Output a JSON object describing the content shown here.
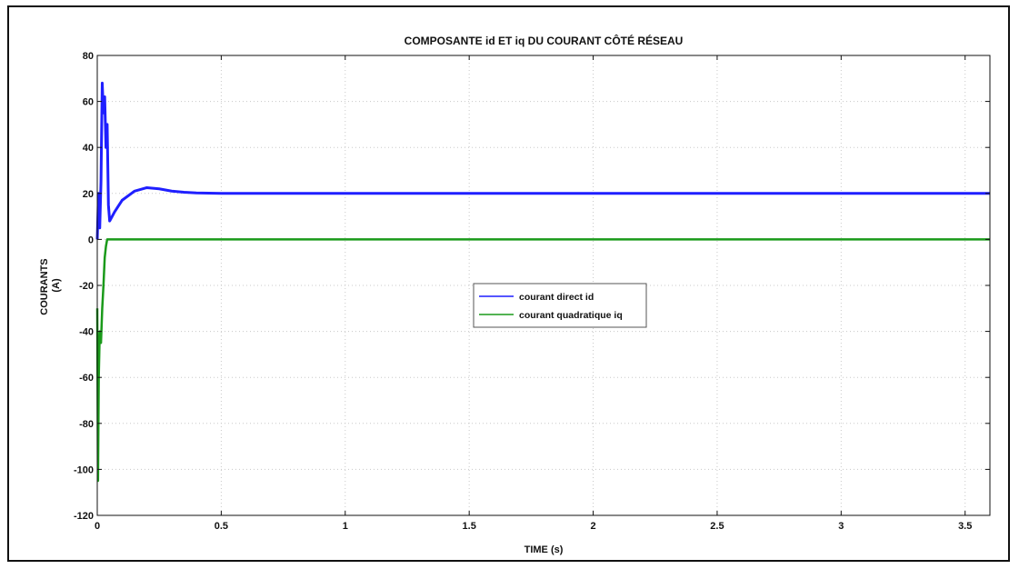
{
  "chart_data": {
    "type": "line",
    "title": "COMPOSANTE id ET iq DU COURANT CÔTÉ RÉSEAU",
    "xlabel": "TIME (s)",
    "ylabel": [
      "COURANTS",
      "(A)"
    ],
    "xlim": [
      0,
      3.6
    ],
    "ylim": [
      -120,
      80
    ],
    "xticks": [
      0,
      0.5,
      1,
      1.5,
      2,
      2.5,
      3,
      3.5
    ],
    "xtick_labels": [
      "0",
      "0.5",
      "1",
      "1.5",
      "2",
      "2.5",
      "3",
      "3.5"
    ],
    "yticks": [
      -120,
      -100,
      -80,
      -60,
      -40,
      -20,
      0,
      20,
      40,
      60,
      80
    ],
    "ytick_labels": [
      "-120",
      "-100",
      "-80",
      "-60",
      "-40",
      "-20",
      "0",
      "20",
      "40",
      "60",
      "80"
    ],
    "grid": true,
    "legend_position": "center",
    "series": [
      {
        "name": "courant direct id",
        "color": "#1f1fff",
        "x": [
          0,
          0.005,
          0.01,
          0.015,
          0.02,
          0.025,
          0.03,
          0.035,
          0.04,
          0.045,
          0.05,
          0.07,
          0.1,
          0.15,
          0.2,
          0.25,
          0.3,
          0.35,
          0.4,
          0.5,
          0.6,
          0.8,
          1.0,
          1.5,
          2.0,
          2.5,
          3.0,
          3.5,
          3.6
        ],
        "y": [
          0,
          20,
          5,
          25,
          68,
          55,
          62,
          40,
          50,
          15,
          8,
          12,
          17,
          21,
          22.5,
          22,
          21,
          20.5,
          20.2,
          20,
          20,
          20,
          20,
          20,
          20,
          20,
          20,
          20,
          20
        ]
      },
      {
        "name": "courant quadratique iq",
        "color": "#1a9a1a",
        "x": [
          0,
          0.003,
          0.006,
          0.01,
          0.015,
          0.02,
          0.025,
          0.03,
          0.035,
          0.04,
          0.05,
          0.1,
          0.5,
          1.0,
          1.5,
          2.0,
          2.5,
          3.0,
          3.5,
          3.6
        ],
        "y": [
          -30,
          -105,
          -60,
          -40,
          -45,
          -30,
          -20,
          -8,
          -3,
          0,
          0,
          0,
          0,
          0,
          0,
          0,
          0,
          0,
          0,
          0
        ]
      }
    ]
  }
}
